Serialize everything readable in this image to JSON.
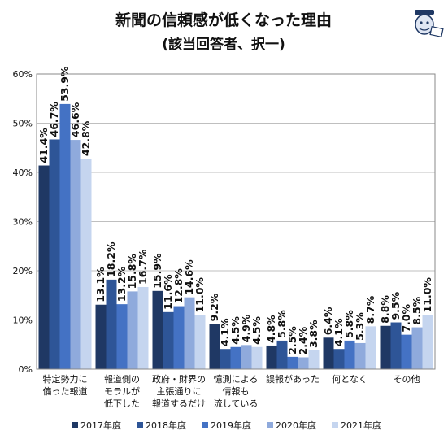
{
  "chart_data": {
    "type": "bar",
    "title": "新聞の信頼感が低くなった理由",
    "subtitle": "(該当回答者、択一)",
    "xlabel": "",
    "ylabel": "",
    "ylim": [
      0,
      60
    ],
    "ytick_labels": [
      "0%",
      "10%",
      "20%",
      "30%",
      "40%",
      "50%",
      "60%"
    ],
    "grid": true,
    "legend_position": "bottom",
    "categories": [
      [
        "特定勢力に",
        "偏った報道"
      ],
      [
        "報道側の",
        "モラルが",
        "低下した"
      ],
      [
        "政府・財界の",
        "主張通りに",
        "報道するだけ"
      ],
      [
        "憶測による",
        "情報も",
        "流している"
      ],
      [
        "誤報があった"
      ],
      [
        "何となく"
      ],
      [
        "その他"
      ]
    ],
    "series": [
      {
        "name": "2017年度",
        "color": "#1f3864",
        "values": [
          41.4,
          13.1,
          15.9,
          9.2,
          4.8,
          6.4,
          8.8
        ]
      },
      {
        "name": "2018年度",
        "color": "#2e5597",
        "values": [
          46.7,
          18.2,
          11.6,
          4.1,
          5.8,
          4.1,
          9.5
        ]
      },
      {
        "name": "2019年度",
        "color": "#4472c4",
        "values": [
          53.9,
          13.2,
          12.8,
          4.5,
          2.5,
          5.8,
          7.0
        ]
      },
      {
        "name": "2020年度",
        "color": "#8faadc",
        "values": [
          46.6,
          15.8,
          14.6,
          4.9,
          2.4,
          5.3,
          8.5
        ]
      },
      {
        "name": "2021年度",
        "color": "#c5d5ef",
        "values": [
          42.8,
          16.7,
          11.0,
          4.5,
          3.8,
          8.7,
          11.0
        ]
      }
    ],
    "data_labels": [
      [
        "41.4%",
        "13.1%",
        "15.9%",
        "9.2%",
        "4.8%",
        "6.4%",
        "8.8%"
      ],
      [
        "46.7%",
        "18.2%",
        "11.6%",
        "4.1%",
        "5.8%",
        "4.1%",
        "9.5%"
      ],
      [
        "53.9%",
        "13.2%",
        "12.8%",
        "4.5%",
        "2.5%",
        "5.8%",
        "7.0%"
      ],
      [
        "46.6%",
        "15.8%",
        "14.6%",
        "4.9%",
        "2.4%",
        "5.3%",
        "8.5%"
      ],
      [
        "42.8%",
        "16.7%",
        "11.0%",
        "4.5%",
        "3.8%",
        "8.7%",
        "11.0%"
      ]
    ]
  }
}
